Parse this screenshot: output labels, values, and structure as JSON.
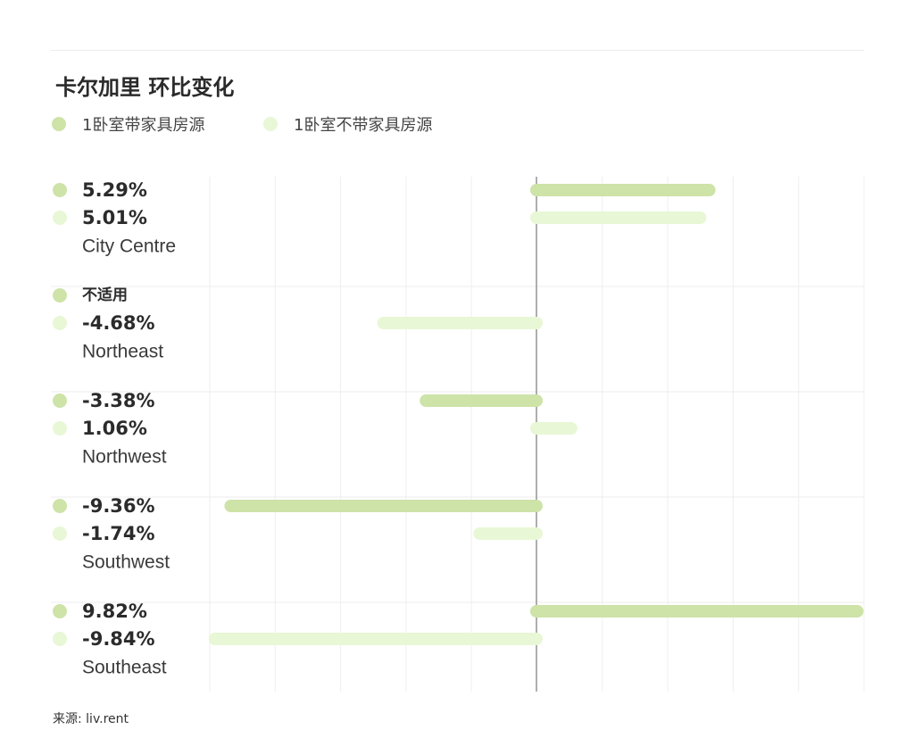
{
  "title": "卡尔加里 环比变化",
  "legend": [
    {
      "label": "1卧室带家具房源",
      "color": "#cde3a8"
    },
    {
      "label": "1卧室不带家具房源",
      "color": "#e8f7d5"
    }
  ],
  "chart_data": {
    "type": "bar",
    "orientation": "horizontal",
    "title": "卡尔加里 环比变化",
    "categories": [
      "City Centre",
      "Northeast",
      "Northwest",
      "Southwest",
      "Southeast"
    ],
    "series": [
      {
        "name": "1卧室带家具房源",
        "color": "#cde3a8",
        "values": [
          5.29,
          null,
          -3.38,
          -9.36,
          9.82
        ],
        "labels": [
          "5.29%",
          "不适用",
          "-3.38%",
          "-9.36%",
          "9.82%"
        ]
      },
      {
        "name": "1卧室不带家具房源",
        "color": "#e8f7d5",
        "values": [
          5.01,
          -4.68,
          1.06,
          -1.74,
          -9.84
        ],
        "labels": [
          "5.01%",
          "-4.68%",
          "1.06%",
          "-1.74%",
          "-9.84%"
        ]
      }
    ],
    "xlim": [
      -10,
      10
    ],
    "grid": true,
    "legend_position": "top-left"
  },
  "source": "来源: liv.rent"
}
